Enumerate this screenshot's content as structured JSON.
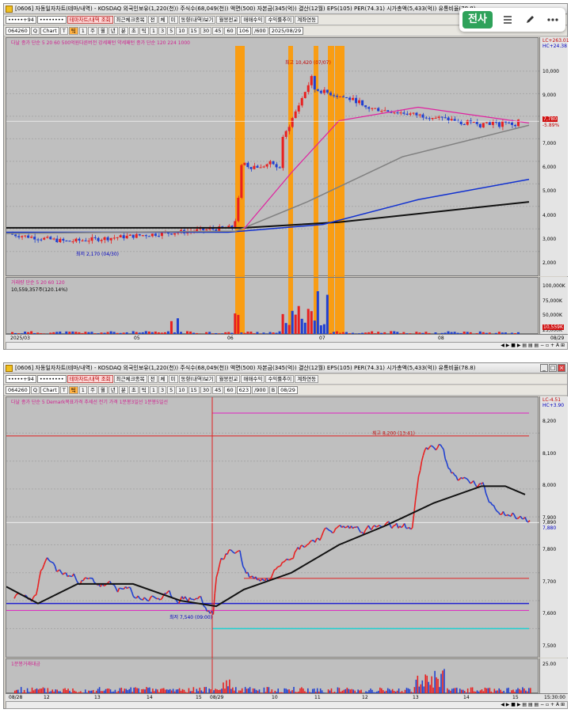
{
  "window1": {
    "title": "[0606] 자동일자차트(테마/내역) - KOSDAQ 외국인보유(1,220(천)) 주식수(68,049(천)) 액면(500) 자본금(345(억)) 결산(12월) EPS(105) PER(74.31) 시가총액(5,433(억)) 유통비율(78.8)",
    "row1": [
      "•••••+94",
      "••••••••",
      "테마차트/내역 조회",
      "최근체크종목",
      "전",
      "체",
      "미",
      "동향(내역)보기",
      "월봉전교",
      "매매수익",
      "수익률추이",
      "계좌연동"
    ],
    "row2": [
      "064260",
      "Q",
      "Chart",
      "T",
      "틱",
      "1",
      "주",
      "월",
      "년",
      "분",
      "초",
      "틱",
      "1",
      "3",
      "5",
      "10",
      "15",
      "30",
      "45",
      "60",
      "106",
      "/600",
      "2025/08/29"
    ],
    "legend": "다날 종가 단순 5 20 60 500억원다른버전 강세패턴 약세패턴 종가 단순 120 224 1000",
    "max_label": "최고 10,420 (07/07)",
    "min_label": "최저 2,170 (04/30)",
    "price_ticks": [
      "10,000",
      "9,000",
      "8,000",
      "7,000",
      "6,000",
      "5,000",
      "4,000",
      "3,000",
      "2,000"
    ],
    "price_top_labels": [
      "LC+263.01",
      "HC+24.38"
    ],
    "current_price": "7,780",
    "current_change": "-5.89%",
    "volume_legend": "거래량 단순 5 20 60 120",
    "volume_value": "10,559,357주(120.14%)",
    "volume_ticks": [
      "100,000K",
      "75,000K",
      "50,000K",
      "25,000K"
    ],
    "volume_current": "10,559K",
    "x_labels": [
      "2025/03",
      "05",
      "06",
      "07",
      "08",
      "08/29"
    ]
  },
  "window2": {
    "title": "[0606] 자동일자차트(테마/내역) - KOSDAQ 외국인보유(1,220(천)) 주식수(68,049(천)) 액면(500) 자본금(345(억)) 결산(12월) EPS(105) PER(74.31) 시가총액(5,433(억)) 유통비율(78.8)",
    "row1": [
      "•••••+94",
      "••••••••",
      "테마차트/내역 조회",
      "최근체크종목",
      "전",
      "체",
      "미",
      "동향(내역)보기",
      "월봉전교",
      "매매수익",
      "수익률추이",
      "계좌연동"
    ],
    "row2": [
      "064260",
      "Q",
      "Chart",
      "T",
      "틱",
      "1",
      "주",
      "월",
      "년",
      "분",
      "초",
      "틱",
      "1",
      "3",
      "5",
      "10",
      "15",
      "30",
      "45",
      "60",
      "623",
      "/900",
      "B",
      "08/29"
    ],
    "legend": "다날 종가 단순 5 Demark목표가격 추세선 전기 가격 1분봉3일선 1분봉5일선",
    "max_label": "최고 8,200 (13:41)",
    "min_label": "최저 7,540 (09:00)",
    "price_ticks": [
      "8,200",
      "8,100",
      "8,000",
      "7,900",
      "7,800",
      "7,700",
      "7,600",
      "7,500"
    ],
    "price_top_labels": [
      "LC-4.51",
      "HC+3.90"
    ],
    "current_price": "7,890",
    "current_change": "7,880",
    "volume_legend": "1분봉거래대금",
    "volume_ticks": [
      "25.00"
    ],
    "x_labels": [
      "08/28",
      "12",
      "13",
      "14",
      "15",
      "08/29",
      "10",
      "11",
      "12",
      "13",
      "14",
      "15",
      "15:30:00"
    ]
  },
  "overlay_toolbar": {
    "label": "전사",
    "icons": [
      "menu-icon",
      "pencil-icon",
      "more-icon"
    ]
  },
  "colors": {
    "bull": "#e82020",
    "bear": "#2040d0",
    "highlight": "#ff9900",
    "chart_bg": "#bfbfbf",
    "accent_green": "#2ea25a"
  }
}
